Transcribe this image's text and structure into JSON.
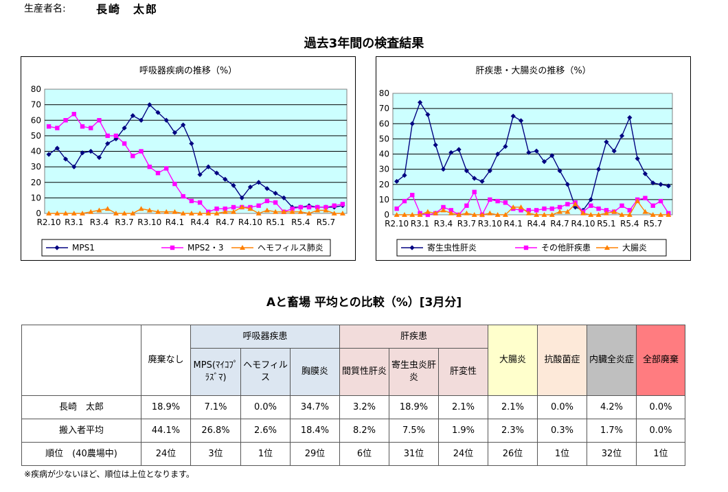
{
  "header": {
    "producer_label": "生産者名:",
    "producer_name": "長崎　太郎"
  },
  "main_title": "過去3年間の検査結果",
  "table_title": "Aと畜場 平均との比較（%）[3月分]",
  "colors": {
    "plot_bg": "#ccffff",
    "blue": "#000080",
    "magenta": "#ff00ff",
    "orange": "#ff8000"
  },
  "chart_data": [
    {
      "type": "line",
      "title": "呼吸器疾病の推移（%）",
      "ylim": [
        0,
        80
      ],
      "yticks": [
        0,
        10,
        20,
        30,
        40,
        50,
        60,
        70,
        80
      ],
      "xtick_labels": [
        "R2.10",
        "R3.1",
        "R3.4",
        "R3.7",
        "R3.10",
        "R4.1",
        "R4.4",
        "R4.7",
        "R4.10",
        "R5.1",
        "R5.4",
        "R5.7"
      ],
      "grid": true,
      "legend_position": "bottom",
      "series": [
        {
          "name": "MPS1",
          "color": "#000080",
          "marker": "diamond",
          "values": [
            38,
            42,
            35,
            30,
            39,
            40,
            36,
            45,
            48,
            55,
            63,
            60,
            70,
            65,
            60,
            52,
            57,
            45,
            25,
            30,
            26,
            22,
            18,
            10,
            17,
            20,
            16,
            13,
            10,
            4,
            4,
            5,
            4,
            4,
            4,
            5
          ]
        },
        {
          "name": "MPS2・3",
          "color": "#ff00ff",
          "marker": "square",
          "values": [
            56,
            55,
            60,
            64,
            56,
            55,
            60,
            50,
            50,
            45,
            37,
            40,
            30,
            26,
            29,
            19,
            11,
            8,
            7,
            1,
            3,
            3,
            4,
            4,
            4,
            5,
            8,
            7,
            1,
            3,
            4,
            4,
            4,
            4,
            5,
            6
          ]
        },
        {
          "name": "ヘモフィルス肺炎",
          "color": "#ff8000",
          "marker": "triangle",
          "values": [
            0,
            0,
            0,
            0,
            0,
            1,
            2,
            3,
            0,
            0,
            0,
            3,
            2,
            1,
            1,
            1,
            0,
            0,
            0,
            0,
            0,
            1,
            1,
            4,
            3,
            0,
            2,
            1,
            1,
            1,
            1,
            0,
            2,
            2,
            0,
            0
          ]
        }
      ]
    },
    {
      "type": "line",
      "title": "肝疾患・大腸炎の推移（%）",
      "ylim": [
        0,
        80
      ],
      "yticks": [
        0,
        10,
        20,
        30,
        40,
        50,
        60,
        70,
        80
      ],
      "xtick_labels": [
        "R2.10",
        "R3.1",
        "R3.4",
        "R3.7",
        "R3.10",
        "R4.1",
        "R4.4",
        "R4.7",
        "R4.10",
        "R5.1",
        "R5.4",
        "R5.7"
      ],
      "grid": true,
      "legend_position": "bottom",
      "series": [
        {
          "name": "寄生虫性肝炎",
          "color": "#000080",
          "marker": "diamond",
          "values": [
            22,
            26,
            60,
            74,
            66,
            46,
            30,
            41,
            43,
            29,
            24,
            22,
            29,
            40,
            45,
            65,
            62,
            41,
            42,
            35,
            39,
            29,
            20,
            5,
            3,
            10,
            30,
            48,
            42,
            52,
            64,
            37,
            27,
            21,
            20,
            19
          ]
        },
        {
          "name": "その他肝疾患",
          "color": "#ff00ff",
          "marker": "square",
          "values": [
            4,
            9,
            13,
            1,
            0,
            1,
            5,
            3,
            0,
            6,
            15,
            0,
            10,
            9,
            8,
            4,
            3,
            3,
            3,
            4,
            4,
            5,
            7,
            8,
            2,
            6,
            4,
            3,
            2,
            6,
            3,
            10,
            11,
            6,
            9,
            1
          ]
        },
        {
          "name": "大腸炎",
          "color": "#ff8000",
          "marker": "triangle",
          "values": [
            0,
            0,
            0,
            0,
            2,
            1,
            3,
            1,
            0,
            1,
            0,
            0,
            1,
            0,
            0,
            5,
            5,
            1,
            0,
            0,
            0,
            2,
            2,
            7,
            1,
            0,
            0,
            1,
            2,
            0,
            0,
            9,
            2,
            0,
            0,
            0
          ]
        }
      ]
    }
  ],
  "table": {
    "col_headers": {
      "haiki_nashi": "廃棄なし",
      "resp_group": "呼吸器疾患",
      "mps": "MPS(ﾏｲｺﾌﾟﾗｽﾞﾏ)",
      "hemo": "ヘモフィルス",
      "kyomaku": "胸膜炎",
      "liver_group": "肝疾患",
      "kanshitsu": "間質性肝炎",
      "kiseichu": "寄生虫炎肝炎",
      "kanhensei": "肝変性",
      "daichoen": "大腸炎",
      "kousan": "抗酸菌症",
      "naizou": "内臓全炎症",
      "zenbu": "全部廃棄"
    },
    "rows": [
      {
        "label": "長崎　太郎",
        "values": [
          "18.9%",
          "7.1%",
          "0.0%",
          "34.7%",
          "3.2%",
          "18.9%",
          "2.1%",
          "2.1%",
          "0.0%",
          "4.2%",
          "0.0%"
        ]
      },
      {
        "label": "搬入者平均",
        "values": [
          "44.1%",
          "26.8%",
          "2.6%",
          "18.4%",
          "8.2%",
          "7.5%",
          "1.9%",
          "2.3%",
          "0.3%",
          "1.7%",
          "0.0%"
        ]
      },
      {
        "label": "順位　(40農場中)",
        "values": [
          "24位",
          "3位",
          "1位",
          "29位",
          "6位",
          "31位",
          "24位",
          "26位",
          "1位",
          "32位",
          "1位"
        ]
      }
    ]
  },
  "footnote": "※疾病が少ないほど、順位は上位となります。"
}
